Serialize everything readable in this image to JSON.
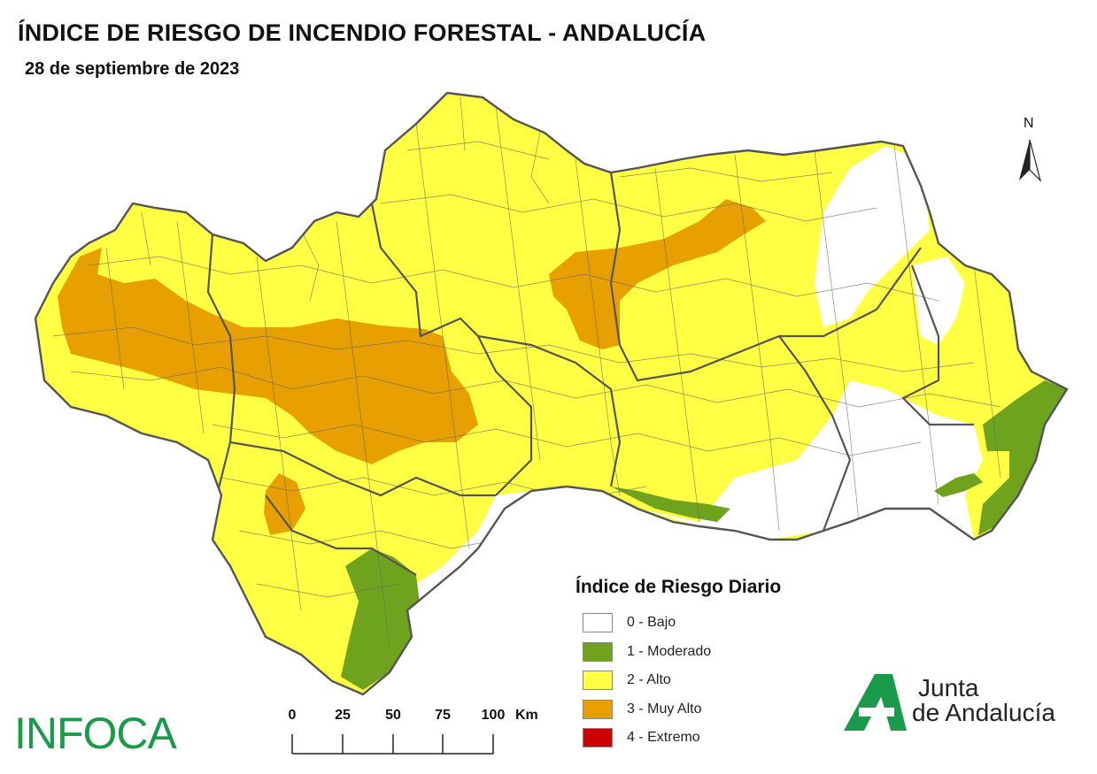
{
  "header": {
    "title": "ÍNDICE DE RIESGO DE INCENDIO FORESTAL - ANDALUCÍA",
    "date": "28 de septiembre de 2023"
  },
  "north_arrow": {
    "label": "N"
  },
  "legend": {
    "title": "Índice de Riesgo Diario",
    "items": [
      {
        "label": "0 - Bajo",
        "color": "#ffffff"
      },
      {
        "label": "1 - Moderado",
        "color": "#6fa31d"
      },
      {
        "label": "2 - Alto",
        "color": "#ffff44"
      },
      {
        "label": "3 - Muy Alto",
        "color": "#e8a000"
      },
      {
        "label": "4 - Extremo",
        "color": "#cc0000"
      }
    ]
  },
  "scale_bar": {
    "ticks": [
      "0",
      "25",
      "50",
      "75",
      "100"
    ],
    "unit": "Km"
  },
  "logos": {
    "infoca": "INFOCA",
    "junta_line1": "Junta",
    "junta_line2": "de Andalucía",
    "brand_green": "#1a9a4a"
  },
  "colors": {
    "bajo": "#ffffff",
    "moderado": "#6fa31d",
    "alto": "#ffff44",
    "muy_alto": "#e8a000",
    "boundary": "#555555"
  }
}
